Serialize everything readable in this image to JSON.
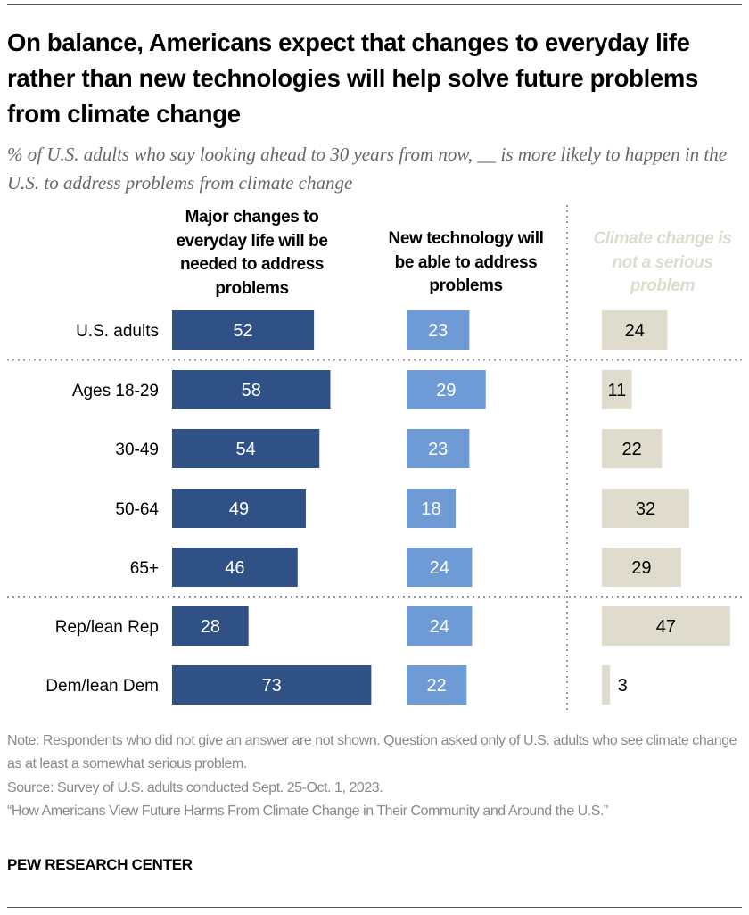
{
  "title": "On balance, Americans expect that changes to everyday life rather than new technologies will help solve future problems from climate change",
  "subtitle": "% of U.S. adults who say looking ahead to 30 years from now, __ is more likely to happen in the U.S. to address problems from climate change",
  "chart_data": {
    "type": "bar",
    "orientation": "horizontal",
    "categories": [
      "U.S. adults",
      "Ages 18-29",
      "30-49",
      "50-64",
      "65+",
      "Rep/lean Rep",
      "Dem/lean Dem"
    ],
    "series": [
      {
        "name": "Major changes to everyday life will be needed to address problems",
        "color": "#2f5185",
        "label_color": "#ffffff",
        "values": [
          52,
          58,
          54,
          49,
          46,
          28,
          73
        ]
      },
      {
        "name": "New technology will be able to address problems",
        "color": "#6e9bd6",
        "label_color": "#ffffff",
        "values": [
          23,
          29,
          23,
          18,
          24,
          24,
          22
        ]
      },
      {
        "name": "Climate change is not a serious problem",
        "color": "#e0dccd",
        "label_color": "#000000",
        "header_color": "#dedbd0",
        "values": [
          24,
          11,
          22,
          32,
          29,
          47,
          3
        ]
      }
    ],
    "group_separators_after": [
      "U.S. adults",
      "65+"
    ]
  },
  "notes": {
    "note": "Note: Respondents who did not give an answer are not shown. Question asked only of U.S. adults who see climate change as at least a somewhat serious problem.",
    "source": "Source: Survey of U.S. adults conducted Sept. 25-Oct. 1, 2023.",
    "report": "“How Americans View Future Harms From Climate Change in Their Community and Around the U.S.”"
  },
  "brand": "PEW RESEARCH CENTER"
}
